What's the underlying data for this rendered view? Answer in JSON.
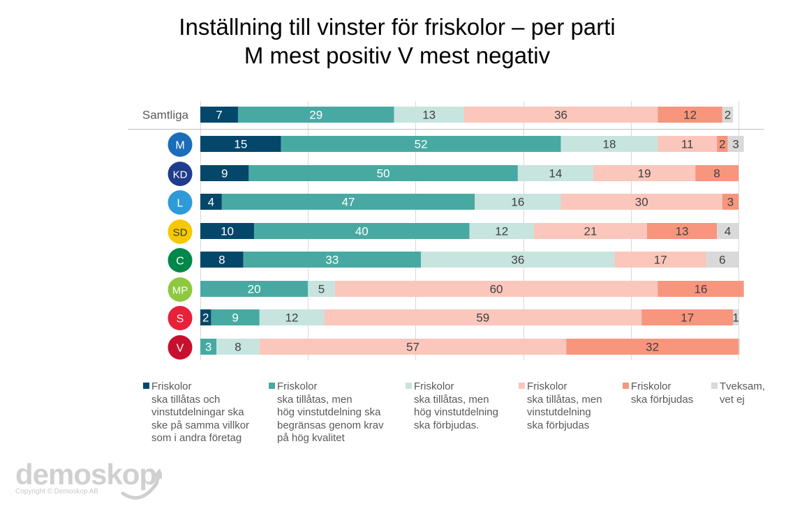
{
  "chart_data": {
    "type": "bar",
    "orientation": "horizontal",
    "stacked": true,
    "title": "Inställning till vinster för friskolor – per parti",
    "subtitle": "M mest positiv V mest negativ",
    "xlim": [
      0,
      100
    ],
    "grid": true,
    "legend_position": "bottom",
    "categories": [
      "Samtliga",
      "M",
      "KD",
      "L",
      "SD",
      "C",
      "MP",
      "S",
      "V"
    ],
    "category_colors": {
      "M": "#1a6db8",
      "KD": "#1f3d8c",
      "L": "#2e9ad9",
      "SD": "#f5c800",
      "C": "#00874a",
      "MP": "#8dc83f",
      "S": "#e8203a",
      "V": "#c8102e"
    },
    "series": [
      {
        "name": "Friskolor ska tillåtas och vinstutdelningar ska ske på samma villkor som i andra företag",
        "color": "#04476a",
        "label_color": "#ffffff",
        "values": [
          7,
          15,
          9,
          4,
          10,
          8,
          0,
          2,
          0
        ]
      },
      {
        "name": "Friskolor ska tillåtas, men hög vinstutdelning ska begränsas genom krav på hög kvalitet",
        "color": "#48a9a2",
        "label_color": "#ffffff",
        "values": [
          29,
          52,
          50,
          47,
          40,
          33,
          20,
          9,
          3
        ]
      },
      {
        "name": "Friskolor ska tillåtas, men hög vinstutdelning ska förbjudas.",
        "color": "#c7e4df",
        "label_color": "#404040",
        "values": [
          13,
          18,
          14,
          16,
          12,
          36,
          5,
          12,
          8
        ]
      },
      {
        "name": "Friskolor ska tillåtas, men vinstutdelning ska förbjudas",
        "color": "#fbc6bb",
        "label_color": "#404040",
        "values": [
          36,
          11,
          19,
          30,
          21,
          17,
          60,
          59,
          57
        ]
      },
      {
        "name": "Friskolor ska förbjudas",
        "color": "#f7957d",
        "label_color": "#404040",
        "values": [
          12,
          2,
          8,
          3,
          13,
          0,
          16,
          17,
          32
        ]
      },
      {
        "name": "Tveksam, vet ej",
        "color": "#d9d9d9",
        "label_color": "#404040",
        "values": [
          2,
          3,
          0,
          0,
          4,
          6,
          0,
          1,
          0.3
        ]
      }
    ],
    "data_labels": [
      [
        "7",
        "29",
        "13",
        "36",
        "12",
        "2"
      ],
      [
        "15",
        "52",
        "18",
        "11",
        "2",
        "3"
      ],
      [
        "9",
        "50",
        "14",
        "19",
        "8",
        ""
      ],
      [
        "4",
        "47",
        "16",
        "30",
        "3",
        ""
      ],
      [
        "10",
        "40",
        "12",
        "21",
        "13",
        "4"
      ],
      [
        "8",
        "33",
        "36",
        "17",
        "",
        "6"
      ],
      [
        "",
        "20",
        "5",
        "60",
        "16",
        ""
      ],
      [
        "2",
        "9",
        "12",
        "59",
        "17",
        "1"
      ],
      [
        "",
        "3",
        "8",
        "57",
        "32",
        ""
      ]
    ]
  },
  "legend": [
    {
      "text": "Friskolor\nska tillåtas och\nvinstutdelningar ska\nske på samma villkor\nsom i andra företag",
      "color": "#04476a"
    },
    {
      "text": "Friskolor\nska tillåtas, men\nhög vinstutdelning ska\nbegränsas genom krav\npå hög kvalitet",
      "color": "#48a9a2"
    },
    {
      "text": "Friskolor\nska tillåtas, men\nhög vinstutdelning\nska förbjudas.",
      "color": "#c7e4df"
    },
    {
      "text": "Friskolor\nska tillåtas, men\nvinstutdelning\nska förbjudas",
      "color": "#fbc6bb"
    },
    {
      "text": "Friskolor\nska förbjudas",
      "color": "#f7957d"
    },
    {
      "text": "Tveksam,\nvet ej",
      "color": "#d9d9d9"
    }
  ],
  "logo": {
    "wordmark": "demoskop",
    "copyright": "Copyright © Demoskop AB"
  }
}
